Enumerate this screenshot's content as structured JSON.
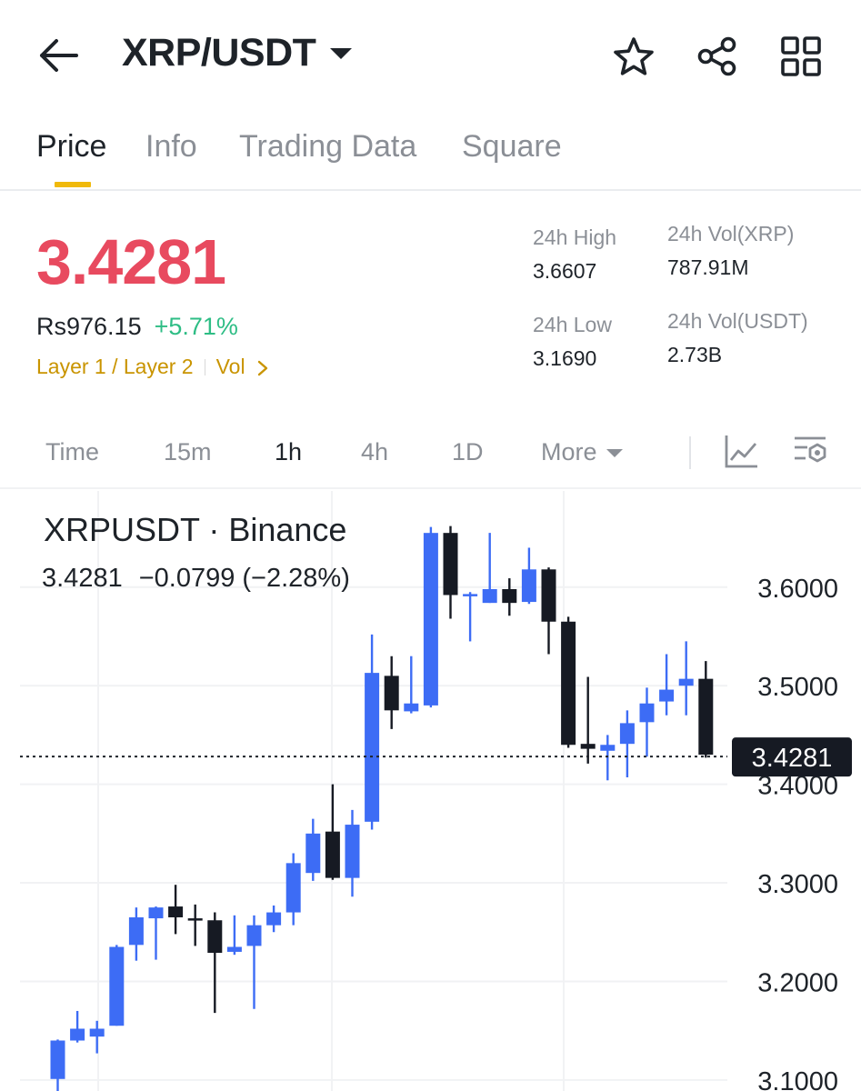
{
  "header": {
    "title": "XRP/USDT",
    "icons": [
      "back-arrow-icon",
      "star-icon",
      "share-icon",
      "grid-icon"
    ]
  },
  "tabs": [
    {
      "label": "Price",
      "active": true
    },
    {
      "label": "Info"
    },
    {
      "label": "Trading Data"
    },
    {
      "label": "Square"
    }
  ],
  "price": {
    "last": "3.4281",
    "fiat": "Rs976.15",
    "change_pct": "+5.71%",
    "tag_category": "Layer 1 / Layer 2",
    "tag_vol": "Vol"
  },
  "stats": {
    "high_label": "24h High",
    "high_value": "3.6607",
    "low_label": "24h Low",
    "low_value": "3.1690",
    "vol_base_label": "24h Vol(XRP)",
    "vol_base_value": "787.91M",
    "vol_quote_label": "24h Vol(USDT)",
    "vol_quote_value": "2.73B"
  },
  "timebar": {
    "items": [
      "Time",
      "15m",
      "1h",
      "4h",
      "1D"
    ],
    "active": "1h",
    "more_label": "More"
  },
  "chart_header": {
    "title": "XRPUSDT · Binance",
    "last": "3.4281",
    "change": "−0.0799 (−2.28%)"
  },
  "colors": {
    "up": "#3d6cf5",
    "down": "#161a23",
    "price_red": "#e84a5f",
    "change_green": "#2ebd85",
    "accent": "#f0b90b",
    "tag": "#c99400"
  },
  "chart_data": {
    "type": "candlestick",
    "y_ticks": [
      "3.6000",
      "3.5000",
      "3.4000",
      "3.3000",
      "3.2000",
      "3.1000"
    ],
    "ylim": [
      3.0888,
      3.6976
    ],
    "last_price": 3.4281,
    "last_price_label": "3.4281",
    "candles": [
      {
        "o": 3.101,
        "h": 3.141,
        "l": 3.078,
        "c": 3.14
      },
      {
        "o": 3.14,
        "h": 3.17,
        "l": 3.138,
        "c": 3.152
      },
      {
        "o": 3.144,
        "h": 3.16,
        "l": 3.127,
        "c": 3.152
      },
      {
        "o": 3.155,
        "h": 3.237,
        "l": 3.155,
        "c": 3.235
      },
      {
        "o": 3.237,
        "h": 3.275,
        "l": 3.221,
        "c": 3.265
      },
      {
        "o": 3.264,
        "h": 3.276,
        "l": 3.222,
        "c": 3.275
      },
      {
        "o": 3.276,
        "h": 3.298,
        "l": 3.248,
        "c": 3.265
      },
      {
        "o": 3.264,
        "h": 3.278,
        "l": 3.236,
        "c": 3.262
      },
      {
        "o": 3.262,
        "h": 3.27,
        "l": 3.168,
        "c": 3.229
      },
      {
        "o": 3.23,
        "h": 3.267,
        "l": 3.227,
        "c": 3.235
      },
      {
        "o": 3.236,
        "h": 3.267,
        "l": 3.172,
        "c": 3.257
      },
      {
        "o": 3.257,
        "h": 3.277,
        "l": 3.25,
        "c": 3.27
      },
      {
        "o": 3.27,
        "h": 3.33,
        "l": 3.257,
        "c": 3.32
      },
      {
        "o": 3.31,
        "h": 3.365,
        "l": 3.302,
        "c": 3.35
      },
      {
        "o": 3.352,
        "h": 3.4,
        "l": 3.303,
        "c": 3.305
      },
      {
        "o": 3.305,
        "h": 3.374,
        "l": 3.286,
        "c": 3.359
      },
      {
        "o": 3.362,
        "h": 3.552,
        "l": 3.354,
        "c": 3.513
      },
      {
        "o": 3.51,
        "h": 3.53,
        "l": 3.456,
        "c": 3.475
      },
      {
        "o": 3.474,
        "h": 3.53,
        "l": 3.472,
        "c": 3.482
      },
      {
        "o": 3.48,
        "h": 3.661,
        "l": 3.478,
        "c": 3.655
      },
      {
        "o": 3.655,
        "h": 3.662,
        "l": 3.568,
        "c": 3.592
      },
      {
        "o": 3.591,
        "h": 3.595,
        "l": 3.545,
        "c": 3.593
      },
      {
        "o": 3.584,
        "h": 3.655,
        "l": 3.584,
        "c": 3.598
      },
      {
        "o": 3.598,
        "h": 3.609,
        "l": 3.571,
        "c": 3.584
      },
      {
        "o": 3.585,
        "h": 3.64,
        "l": 3.583,
        "c": 3.618
      },
      {
        "o": 3.618,
        "h": 3.62,
        "l": 3.532,
        "c": 3.565
      },
      {
        "o": 3.565,
        "h": 3.57,
        "l": 3.437,
        "c": 3.44
      },
      {
        "o": 3.441,
        "h": 3.509,
        "l": 3.421,
        "c": 3.436
      },
      {
        "o": 3.434,
        "h": 3.45,
        "l": 3.404,
        "c": 3.44
      },
      {
        "o": 3.441,
        "h": 3.475,
        "l": 3.407,
        "c": 3.462
      },
      {
        "o": 3.463,
        "h": 3.498,
        "l": 3.428,
        "c": 3.482
      },
      {
        "o": 3.484,
        "h": 3.532,
        "l": 3.47,
        "c": 3.496
      },
      {
        "o": 3.5,
        "h": 3.545,
        "l": 3.47,
        "c": 3.507
      },
      {
        "o": 3.507,
        "h": 3.525,
        "l": 3.427,
        "c": 3.43
      }
    ]
  }
}
